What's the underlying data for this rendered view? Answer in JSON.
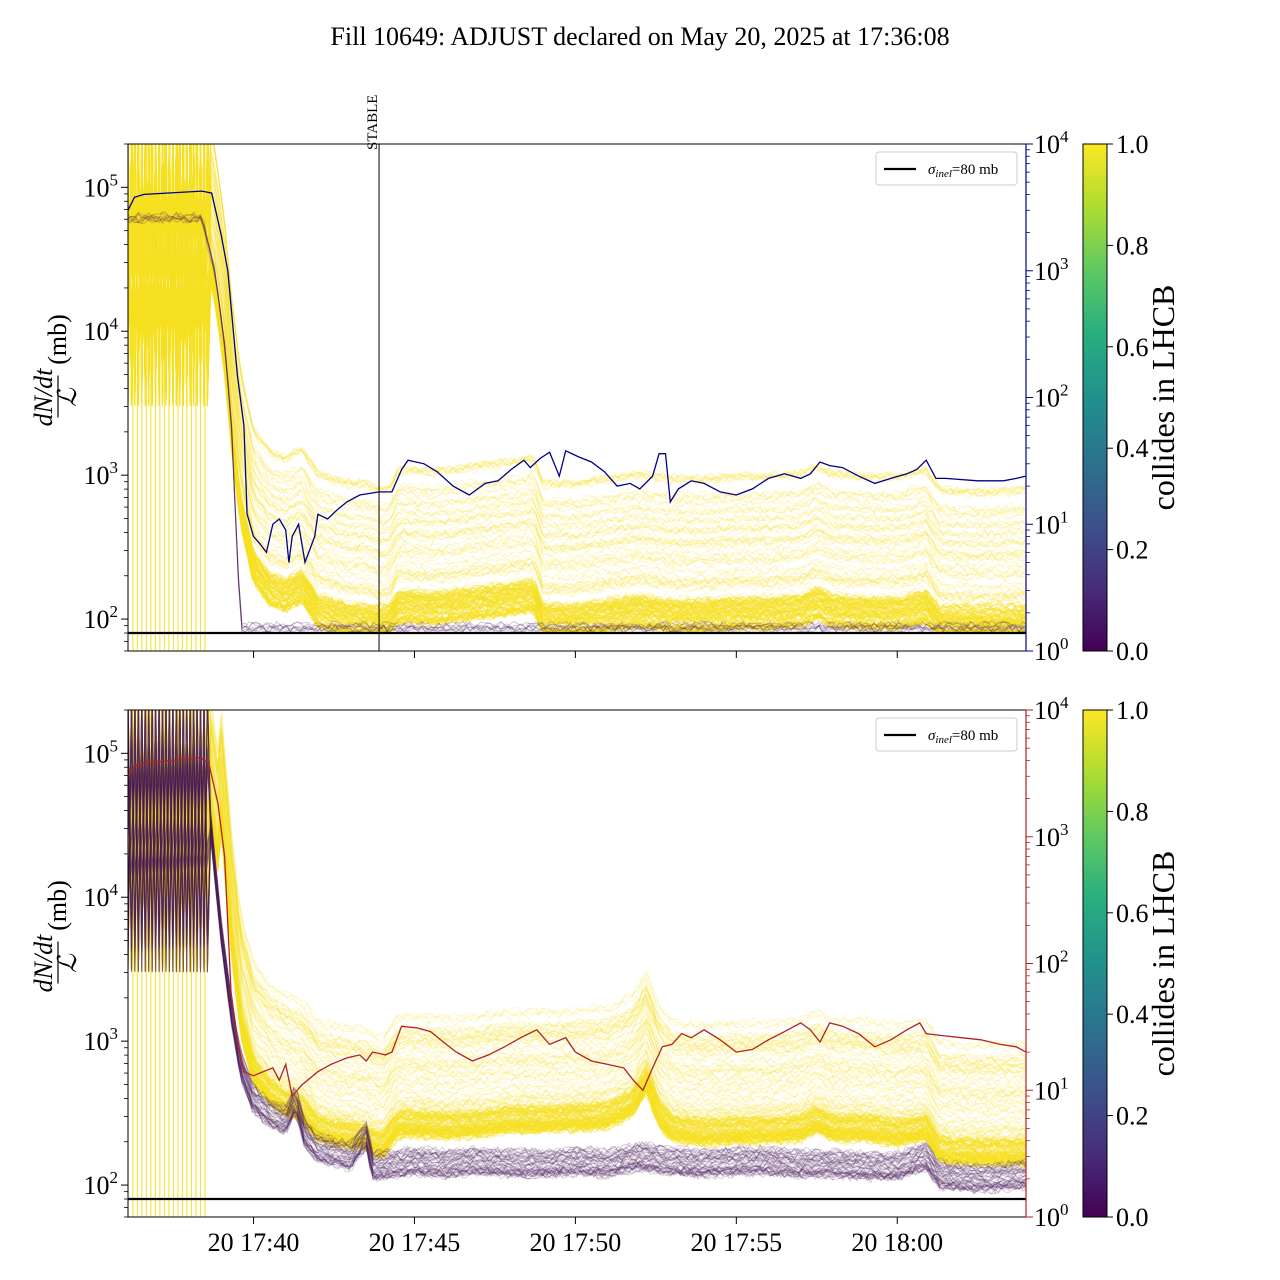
{
  "figure": {
    "title": "Fill 10649: ADJUST declared on May 20, 2025 at 17:36:08"
  },
  "colors": {
    "top_rate_line": "#00008b",
    "bottom_rate_line": "#b22222",
    "bunch_yellow": "#f6e020",
    "bunch_purple": "#4a1a5a",
    "reference_line": "#000000"
  },
  "chart_data": [
    {
      "type": "line",
      "panel": "top",
      "ylabel_numerator": "dN/dt",
      "ylabel_denominator": "ℒ",
      "ylabel_unit": "(mb)",
      "yscale": "log",
      "ylim": [
        60,
        200000
      ],
      "yticks": [
        {
          "base": "10",
          "exp": "2",
          "value": 100
        },
        {
          "base": "10",
          "exp": "3",
          "value": 1000
        },
        {
          "base": "10",
          "exp": "4",
          "value": 10000
        },
        {
          "base": "10",
          "exp": "5",
          "value": 100000
        }
      ],
      "xlim": [
        "17:36:08",
        "17:64:00"
      ],
      "x_range_minutes": [
        36.1,
        64.0
      ],
      "legend": {
        "label_symbol": "σ",
        "label_sub": "inel",
        "label_value": "=80 mb",
        "position": "top-right"
      },
      "reference_line_value": 80,
      "annotation": {
        "text": "STABLE",
        "x_minutes": 43.9
      },
      "right_axis": {
        "yscale": "log",
        "ylim": [
          1,
          10000
        ],
        "color": "#00008b",
        "yticks": [
          {
            "base": "10",
            "exp": "0",
            "value": 1
          },
          {
            "base": "10",
            "exp": "1",
            "value": 10
          },
          {
            "base": "10",
            "exp": "2",
            "value": 100
          },
          {
            "base": "10",
            "exp": "3",
            "value": 1000
          },
          {
            "base": "10",
            "exp": "4",
            "value": 10000
          }
        ],
        "series_points": [
          [
            36.1,
            3000
          ],
          [
            36.3,
            3800
          ],
          [
            36.6,
            4000
          ],
          [
            38.4,
            4250
          ],
          [
            38.7,
            4100
          ],
          [
            39.0,
            1900
          ],
          [
            39.2,
            1000
          ],
          [
            39.5,
            150
          ],
          [
            39.7,
            60
          ],
          [
            39.8,
            12
          ],
          [
            40.0,
            8
          ],
          [
            40.2,
            7
          ],
          [
            40.4,
            6
          ],
          [
            40.6,
            10
          ],
          [
            40.8,
            11
          ],
          [
            41.0,
            9
          ],
          [
            41.1,
            5
          ],
          [
            41.2,
            8
          ],
          [
            41.4,
            10
          ],
          [
            41.6,
            5
          ],
          [
            41.9,
            8
          ],
          [
            42.0,
            12
          ],
          [
            42.3,
            11
          ],
          [
            42.6,
            13
          ],
          [
            42.9,
            15
          ],
          [
            43.3,
            17
          ],
          [
            43.9,
            18
          ],
          [
            44.3,
            18
          ],
          [
            44.6,
            27
          ],
          [
            44.8,
            32
          ],
          [
            45.3,
            30
          ],
          [
            45.7,
            26
          ],
          [
            46.2,
            20
          ],
          [
            46.7,
            17
          ],
          [
            47.2,
            21
          ],
          [
            47.6,
            22
          ],
          [
            48.0,
            27
          ],
          [
            48.4,
            32
          ],
          [
            48.6,
            28
          ],
          [
            48.9,
            33
          ],
          [
            49.2,
            37
          ],
          [
            49.5,
            24
          ],
          [
            49.7,
            38
          ],
          [
            50.1,
            34
          ],
          [
            50.5,
            31
          ],
          [
            50.9,
            26
          ],
          [
            51.3,
            20
          ],
          [
            51.7,
            21
          ],
          [
            52.0,
            19
          ],
          [
            52.4,
            24
          ],
          [
            52.6,
            36
          ],
          [
            52.8,
            36
          ],
          [
            52.95,
            15
          ],
          [
            53.2,
            19
          ],
          [
            53.6,
            22
          ],
          [
            54.0,
            21
          ],
          [
            54.5,
            18
          ],
          [
            55.0,
            17
          ],
          [
            55.5,
            19
          ],
          [
            56.0,
            23
          ],
          [
            56.5,
            25
          ],
          [
            57.0,
            23
          ],
          [
            57.3,
            25
          ],
          [
            57.6,
            31
          ],
          [
            57.9,
            29
          ],
          [
            58.3,
            28
          ],
          [
            58.8,
            24
          ],
          [
            59.3,
            21
          ],
          [
            59.8,
            23
          ],
          [
            60.3,
            25
          ],
          [
            60.6,
            27
          ],
          [
            60.9,
            32
          ],
          [
            61.2,
            23
          ],
          [
            61.5,
            23
          ],
          [
            62.5,
            22
          ],
          [
            63.3,
            22
          ],
          [
            63.7,
            23
          ],
          [
            64.0,
            24
          ]
        ]
      }
    },
    {
      "type": "line",
      "panel": "bottom",
      "ylabel_numerator": "dN/dt",
      "ylabel_denominator": "ℒ",
      "ylabel_unit": "(mb)",
      "yscale": "log",
      "ylim": [
        60,
        200000
      ],
      "yticks": [
        {
          "base": "10",
          "exp": "2",
          "value": 100
        },
        {
          "base": "10",
          "exp": "3",
          "value": 1000
        },
        {
          "base": "10",
          "exp": "4",
          "value": 10000
        },
        {
          "base": "10",
          "exp": "5",
          "value": 100000
        }
      ],
      "xlim": [
        "17:36:08",
        "17:64:00"
      ],
      "x_range_minutes": [
        36.1,
        64.0
      ],
      "xticks": [
        {
          "label": "20 17:40",
          "minutes": 40
        },
        {
          "label": "20 17:45",
          "minutes": 45
        },
        {
          "label": "20 17:50",
          "minutes": 50
        },
        {
          "label": "20 17:55",
          "minutes": 55
        },
        {
          "label": "20 18:00",
          "minutes": 60
        }
      ],
      "legend": {
        "label_symbol": "σ",
        "label_sub": "inel",
        "label_value": "=80 mb",
        "position": "top-right"
      },
      "reference_line_value": 80,
      "right_axis": {
        "yscale": "log",
        "ylim": [
          1,
          10000
        ],
        "color": "#b22222",
        "yticks": [
          {
            "base": "10",
            "exp": "0",
            "value": 1
          },
          {
            "base": "10",
            "exp": "1",
            "value": 10
          },
          {
            "base": "10",
            "exp": "2",
            "value": 100
          },
          {
            "base": "10",
            "exp": "3",
            "value": 1000
          },
          {
            "base": "10",
            "exp": "4",
            "value": 10000
          }
        ],
        "series_points": [
          [
            36.1,
            3000
          ],
          [
            36.3,
            3600
          ],
          [
            36.6,
            3800
          ],
          [
            38.3,
            4200
          ],
          [
            38.6,
            3900
          ],
          [
            38.9,
            1800
          ],
          [
            39.1,
            700
          ],
          [
            39.3,
            60
          ],
          [
            39.5,
            25
          ],
          [
            39.7,
            14
          ],
          [
            40.0,
            13
          ],
          [
            40.3,
            14
          ],
          [
            40.6,
            15
          ],
          [
            40.8,
            12
          ],
          [
            41.0,
            16
          ],
          [
            41.2,
            9
          ],
          [
            41.5,
            11
          ],
          [
            42.0,
            14
          ],
          [
            42.4,
            16
          ],
          [
            42.9,
            18
          ],
          [
            43.3,
            19
          ],
          [
            43.5,
            17
          ],
          [
            43.7,
            20
          ],
          [
            44.1,
            19
          ],
          [
            44.3,
            20
          ],
          [
            44.6,
            32
          ],
          [
            45.1,
            31
          ],
          [
            45.5,
            29
          ],
          [
            45.9,
            24
          ],
          [
            46.3,
            20
          ],
          [
            46.8,
            17
          ],
          [
            47.3,
            19
          ],
          [
            47.8,
            22
          ],
          [
            48.3,
            26
          ],
          [
            48.8,
            30
          ],
          [
            49.2,
            23
          ],
          [
            49.7,
            26
          ],
          [
            50.0,
            20
          ],
          [
            50.5,
            17
          ],
          [
            51.0,
            16
          ],
          [
            51.5,
            15
          ],
          [
            51.8,
            12
          ],
          [
            52.1,
            10
          ],
          [
            52.4,
            15
          ],
          [
            52.7,
            22
          ],
          [
            53.0,
            23
          ],
          [
            53.3,
            28
          ],
          [
            53.6,
            26
          ],
          [
            54.0,
            30
          ],
          [
            54.5,
            25
          ],
          [
            55.0,
            20
          ],
          [
            55.5,
            21
          ],
          [
            56.0,
            25
          ],
          [
            56.5,
            29
          ],
          [
            57.0,
            34
          ],
          [
            57.3,
            30
          ],
          [
            57.6,
            24
          ],
          [
            57.9,
            34
          ],
          [
            58.3,
            32
          ],
          [
            58.8,
            28
          ],
          [
            59.3,
            22
          ],
          [
            59.8,
            25
          ],
          [
            60.3,
            30
          ],
          [
            60.7,
            34
          ],
          [
            60.9,
            28
          ],
          [
            61.4,
            27
          ],
          [
            62.0,
            26
          ],
          [
            62.6,
            25
          ],
          [
            63.2,
            23
          ],
          [
            63.7,
            22
          ],
          [
            64.0,
            20
          ]
        ]
      }
    }
  ],
  "colorbar": {
    "label": "collides in LHCB",
    "ticks": [
      "0.0",
      "0.2",
      "0.4",
      "0.6",
      "0.8",
      "1.0"
    ],
    "colormap": "viridis",
    "range": [
      0.0,
      1.0
    ]
  }
}
